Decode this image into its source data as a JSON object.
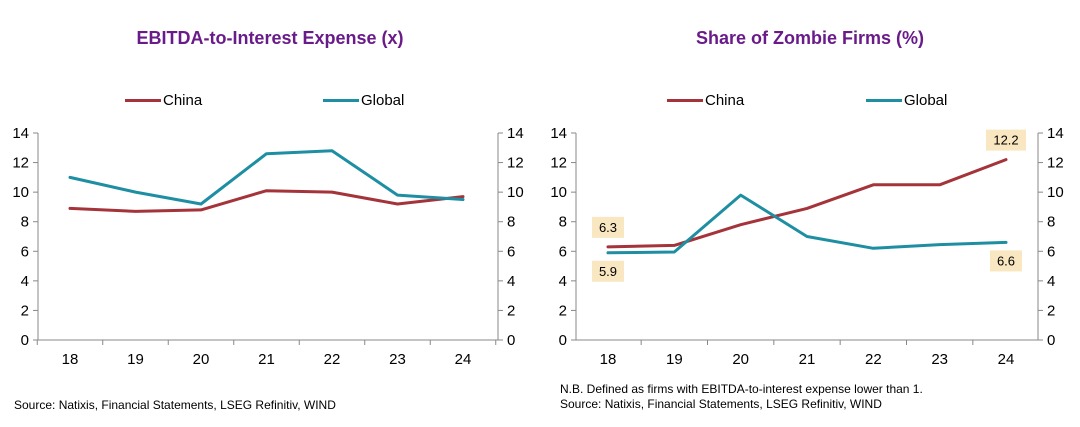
{
  "colors": {
    "china": "#a4343a",
    "global": "#1e8ea3",
    "title": "#6a1b8a",
    "label_bg": "#f8e7c0"
  },
  "notes": {
    "left_source": "Source: Natixis, Financial Statements, LSEG Refinitiv, WIND",
    "right_nb": "N.B. Defined as firms with EBITDA-to-interest expense lower than 1.",
    "right_source": "Source: Natixis, Financial Statements, LSEG Refinitiv, WIND"
  },
  "chart_data": [
    {
      "type": "line",
      "title": "EBITDA-to-Interest Expense (x)",
      "categories": [
        "18",
        "19",
        "20",
        "21",
        "22",
        "23",
        "24"
      ],
      "series": [
        {
          "name": "China",
          "values": [
            8.9,
            8.7,
            8.8,
            10.1,
            10.0,
            9.2,
            9.7
          ]
        },
        {
          "name": "Global",
          "values": [
            11.0,
            10.0,
            9.2,
            12.6,
            12.8,
            9.8,
            9.5
          ]
        }
      ],
      "ylim": [
        0,
        14
      ],
      "yticks": [
        "0",
        "2",
        "4",
        "6",
        "8",
        "10",
        "12",
        "14"
      ],
      "dual_axis": true,
      "grid": false,
      "legend": "top",
      "data_labels": []
    },
    {
      "type": "line",
      "title": "Share of Zombie Firms (%)",
      "categories": [
        "18",
        "19",
        "20",
        "21",
        "22",
        "23",
        "24"
      ],
      "series": [
        {
          "name": "China",
          "values": [
            6.3,
            6.4,
            7.8,
            8.9,
            10.5,
            10.5,
            12.2
          ]
        },
        {
          "name": "Global",
          "values": [
            5.9,
            5.95,
            9.8,
            7.0,
            6.2,
            6.45,
            6.6
          ]
        }
      ],
      "ylim": [
        0,
        14
      ],
      "yticks": [
        "0",
        "2",
        "4",
        "6",
        "8",
        "10",
        "12",
        "14"
      ],
      "dual_axis": true,
      "grid": false,
      "legend": "top",
      "data_labels": [
        {
          "series": "China",
          "index": 0,
          "text": "6.3"
        },
        {
          "series": "Global",
          "index": 0,
          "text": "5.9"
        },
        {
          "series": "China",
          "index": 6,
          "text": "12.2"
        },
        {
          "series": "Global",
          "index": 6,
          "text": "6.6"
        }
      ]
    }
  ]
}
